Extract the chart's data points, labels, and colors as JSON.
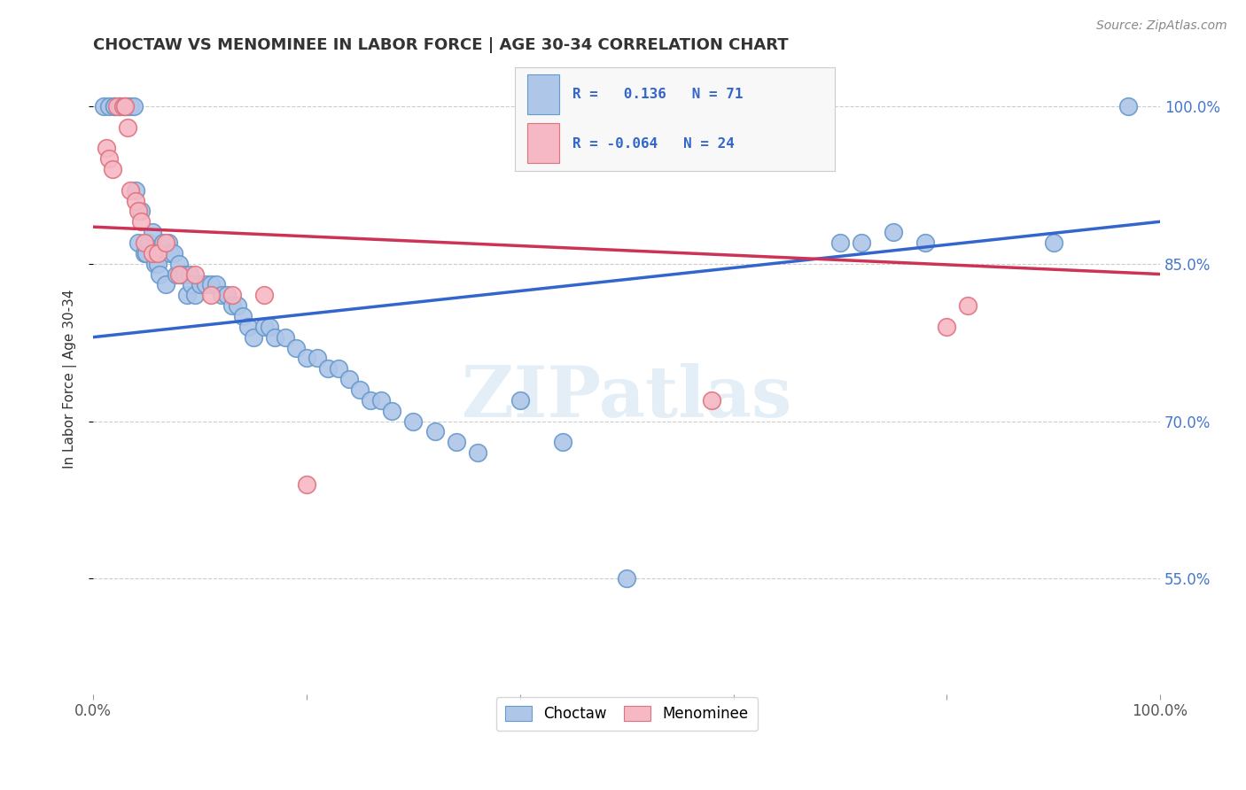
{
  "title": "CHOCTAW VS MENOMINEE IN LABOR FORCE | AGE 30-34 CORRELATION CHART",
  "source_text": "Source: ZipAtlas.com",
  "ylabel": "In Labor Force | Age 30-34",
  "xlim": [
    0.0,
    1.0
  ],
  "ylim": [
    0.44,
    1.04
  ],
  "x_ticks": [
    0.0,
    0.2,
    0.4,
    0.6,
    0.8,
    1.0
  ],
  "y_ticks": [
    0.55,
    0.7,
    0.85,
    1.0
  ],
  "choctaw_color": "#aec6e8",
  "choctaw_edge_color": "#6699cc",
  "menominee_color": "#f5b8c4",
  "menominee_edge_color": "#e0737f",
  "choctaw_line_color": "#3366cc",
  "menominee_line_color": "#cc3355",
  "R_choctaw": 0.136,
  "N_choctaw": 71,
  "R_menominee": -0.064,
  "N_menominee": 24,
  "legend_label_choctaw": "Choctaw",
  "legend_label_menominee": "Menominee",
  "watermark": "ZIPatlas",
  "choctaw_x": [
    0.01,
    0.015,
    0.02,
    0.02,
    0.025,
    0.025,
    0.03,
    0.032,
    0.035,
    0.038,
    0.04,
    0.042,
    0.045,
    0.048,
    0.05,
    0.052,
    0.055,
    0.058,
    0.06,
    0.062,
    0.065,
    0.068,
    0.07,
    0.072,
    0.075,
    0.078,
    0.08,
    0.082,
    0.085,
    0.088,
    0.09,
    0.092,
    0.095,
    0.1,
    0.105,
    0.11,
    0.115,
    0.12,
    0.125,
    0.13,
    0.135,
    0.14,
    0.145,
    0.15,
    0.16,
    0.165,
    0.17,
    0.18,
    0.19,
    0.2,
    0.21,
    0.22,
    0.23,
    0.24,
    0.25,
    0.26,
    0.27,
    0.28,
    0.3,
    0.32,
    0.34,
    0.36,
    0.4,
    0.44,
    0.5,
    0.7,
    0.72,
    0.75,
    0.78,
    0.9,
    0.97
  ],
  "choctaw_y": [
    1.0,
    1.0,
    1.0,
    1.0,
    1.0,
    1.0,
    1.0,
    1.0,
    1.0,
    1.0,
    0.92,
    0.87,
    0.9,
    0.86,
    0.86,
    0.87,
    0.88,
    0.85,
    0.85,
    0.84,
    0.87,
    0.83,
    0.87,
    0.86,
    0.86,
    0.84,
    0.85,
    0.84,
    0.84,
    0.82,
    0.84,
    0.83,
    0.82,
    0.83,
    0.83,
    0.83,
    0.83,
    0.82,
    0.82,
    0.81,
    0.81,
    0.8,
    0.79,
    0.78,
    0.79,
    0.79,
    0.78,
    0.78,
    0.77,
    0.76,
    0.76,
    0.75,
    0.75,
    0.74,
    0.73,
    0.72,
    0.72,
    0.71,
    0.7,
    0.69,
    0.68,
    0.67,
    0.72,
    0.68,
    0.55,
    0.87,
    0.87,
    0.88,
    0.87,
    0.87,
    1.0
  ],
  "menominee_x": [
    0.012,
    0.015,
    0.018,
    0.022,
    0.028,
    0.03,
    0.032,
    0.035,
    0.04,
    0.042,
    0.045,
    0.048,
    0.055,
    0.06,
    0.068,
    0.08,
    0.095,
    0.11,
    0.13,
    0.16,
    0.2,
    0.58,
    0.8,
    0.82
  ],
  "menominee_y": [
    0.96,
    0.95,
    0.94,
    1.0,
    1.0,
    1.0,
    0.98,
    0.92,
    0.91,
    0.9,
    0.89,
    0.87,
    0.86,
    0.86,
    0.87,
    0.84,
    0.84,
    0.82,
    0.82,
    0.82,
    0.64,
    0.72,
    0.79,
    0.81
  ],
  "choctaw_line_x0": 0.0,
  "choctaw_line_y0": 0.78,
  "choctaw_line_x1": 1.0,
  "choctaw_line_y1": 0.89,
  "menominee_line_x0": 0.0,
  "menominee_line_y0": 0.885,
  "menominee_line_x1": 1.0,
  "menominee_line_y1": 0.84
}
